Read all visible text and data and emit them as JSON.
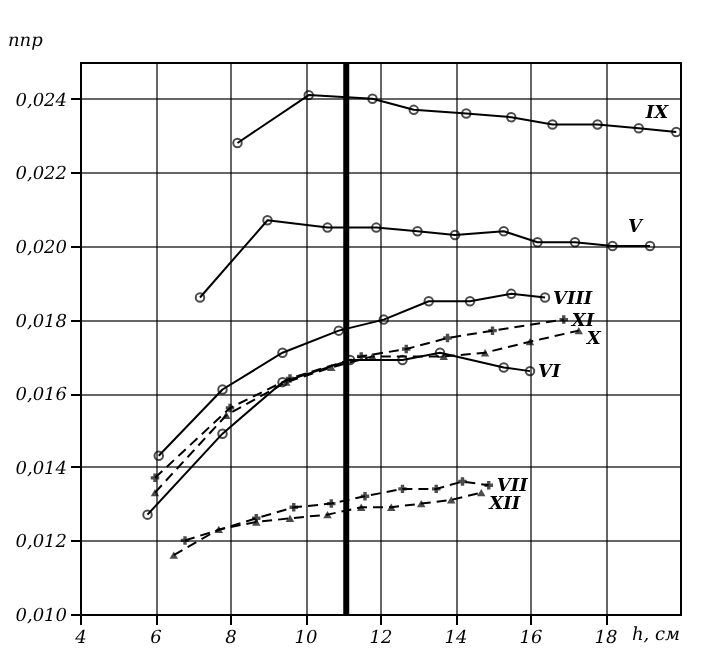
{
  "chart_data": {
    "type": "line",
    "xlabel": "h, см",
    "ylabel": "nпр",
    "xlim": [
      4,
      20
    ],
    "ylim": [
      0.01,
      0.025
    ],
    "xticks": [
      4,
      6,
      8,
      10,
      12,
      14,
      16,
      18
    ],
    "yticks": [
      {
        "value": 0.01,
        "label": "0,010"
      },
      {
        "value": 0.012,
        "label": "0,012"
      },
      {
        "value": 0.014,
        "label": "0,014"
      },
      {
        "value": 0.016,
        "label": "0,016"
      },
      {
        "value": 0.018,
        "label": "0,018"
      },
      {
        "value": 0.02,
        "label": "0,020"
      },
      {
        "value": 0.022,
        "label": "0,022"
      },
      {
        "value": 0.024,
        "label": "0,024"
      }
    ],
    "grid": true,
    "ref_lines": [
      {
        "axis": "x",
        "value": 11.1,
        "color": "#000000"
      }
    ],
    "series": [
      {
        "name": "IX",
        "color": "#000000",
        "marker": "circle",
        "line_style": "solid",
        "x": [
          8.2,
          10.1,
          11.8,
          12.9,
          14.3,
          15.5,
          16.6,
          17.8,
          18.9,
          19.9
        ],
        "values": [
          0.0228,
          0.0241,
          0.024,
          0.0237,
          0.0236,
          0.0235,
          0.0233,
          0.0233,
          0.0232,
          0.0231
        ]
      },
      {
        "name": "V",
        "color": "#000000",
        "marker": "circle",
        "line_style": "solid",
        "x": [
          7.2,
          9.0,
          10.6,
          11.9,
          13.0,
          14.0,
          15.3,
          16.2,
          17.2,
          18.2,
          19.2
        ],
        "values": [
          0.0186,
          0.0207,
          0.0205,
          0.0205,
          0.0204,
          0.0203,
          0.0204,
          0.0201,
          0.0201,
          0.02,
          0.02
        ]
      },
      {
        "name": "VIII",
        "color": "#000000",
        "marker": "circle",
        "line_style": "solid",
        "x": [
          6.1,
          7.8,
          9.4,
          10.9,
          12.1,
          13.3,
          14.4,
          15.5,
          16.4
        ],
        "values": [
          0.0143,
          0.0161,
          0.0171,
          0.0177,
          0.018,
          0.0185,
          0.0185,
          0.0187,
          0.0186
        ]
      },
      {
        "name": "XI",
        "color": "#000000",
        "marker": "cross",
        "line_style": "dashed",
        "x": [
          6.0,
          8.0,
          9.6,
          11.5,
          12.7,
          13.8,
          15.0,
          16.9
        ],
        "values": [
          0.0137,
          0.0156,
          0.0164,
          0.017,
          0.0172,
          0.0175,
          0.0177,
          0.018
        ]
      },
      {
        "name": "X",
        "color": "#000000",
        "marker": "triangle",
        "line_style": "dashed",
        "x": [
          6.0,
          7.9,
          9.5,
          10.7,
          11.8,
          13.7,
          14.8,
          16.0,
          17.3
        ],
        "values": [
          0.0133,
          0.0154,
          0.0163,
          0.0167,
          0.017,
          0.017,
          0.0171,
          0.0174,
          0.0177
        ]
      },
      {
        "name": "VI",
        "color": "#000000",
        "marker": "circle",
        "line_style": "solid",
        "x": [
          5.8,
          7.8,
          9.4,
          11.2,
          12.6,
          13.6,
          15.3,
          16.0
        ],
        "values": [
          0.0127,
          0.0149,
          0.0163,
          0.0169,
          0.0169,
          0.0171,
          0.0167,
          0.0166
        ]
      },
      {
        "name": "VII",
        "color": "#000000",
        "marker": "cross",
        "line_style": "dashed",
        "x": [
          6.8,
          8.7,
          9.7,
          10.7,
          11.6,
          12.6,
          13.5,
          14.2,
          14.9
        ],
        "values": [
          0.012,
          0.0126,
          0.0129,
          0.013,
          0.0132,
          0.0134,
          0.0134,
          0.0136,
          0.0135
        ]
      },
      {
        "name": "XII",
        "color": "#000000",
        "marker": "triangle",
        "line_style": "dashed",
        "x": [
          6.5,
          7.7,
          8.7,
          9.6,
          10.6,
          11.5,
          12.3,
          13.1,
          13.9,
          14.7
        ],
        "values": [
          0.0116,
          0.0123,
          0.0125,
          0.0126,
          0.0127,
          0.0129,
          0.0129,
          0.013,
          0.0131,
          0.0133
        ]
      }
    ]
  }
}
